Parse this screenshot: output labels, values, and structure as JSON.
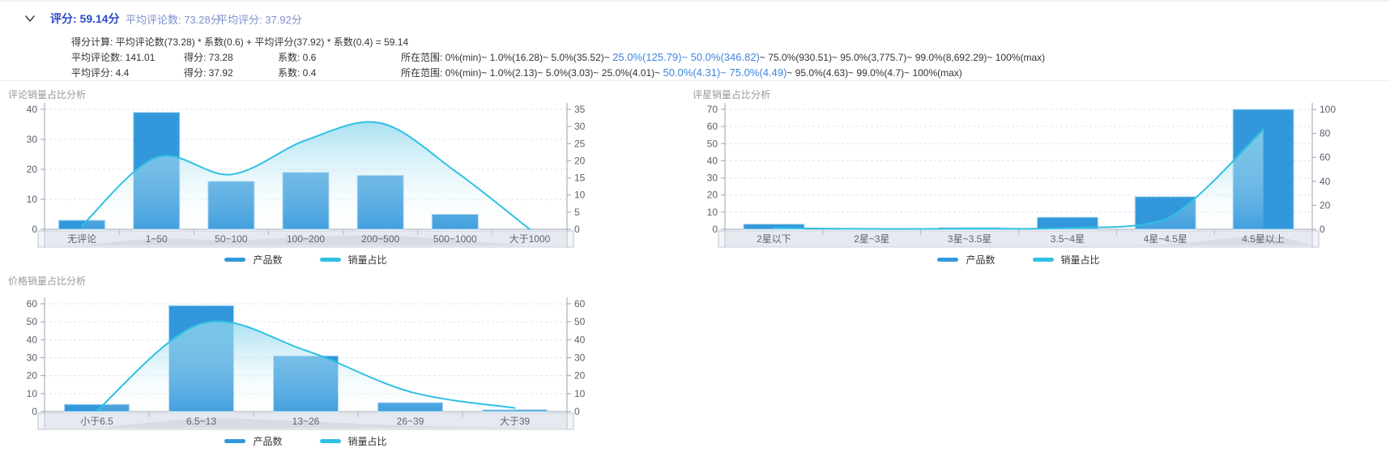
{
  "header": {
    "score_label": "评分: 59.14分",
    "avg_reviews_label": "平均评论数: 73.28分",
    "avg_rating_label": "平均评分: 37.92分",
    "formula": "得分计算: 平均评论数(73.28) * 系数(0.6) + 平均评分(37.92) * 系数(0.4) = 59.14",
    "rows": [
      {
        "metric": "平均评论数: 141.01",
        "score": "得分: 73.28",
        "coeff": "系数: 0.6",
        "range_prefix": "所在范围: 0%(min)~ 1.0%(16.28)~ 5.0%(35.52)~ ",
        "range_highlight": "25.0%(125.79)~ 50.0%(346.82)",
        "range_suffix": "~ 75.0%(930.51)~ 95.0%(3,775.7)~ 99.0%(8,692.29)~ 100%(max)"
      },
      {
        "metric": "平均评分: 4.4",
        "score": "得分: 37.92",
        "coeff": "系数: 0.4",
        "range_prefix": "所在范围: 0%(min)~ 1.0%(2.13)~ 5.0%(3.03)~ 25.0%(4.01)~ ",
        "range_highlight": "50.0%(4.31)~ 75.0%(4.49)",
        "range_suffix": "~ 95.0%(4.63)~ 99.0%(4.7)~ 100%(max)"
      }
    ]
  },
  "legend": {
    "bar_label": "产品数",
    "line_label": "销量占比"
  },
  "colors": {
    "bar": "#3398db",
    "bar_border": "#aed6f0",
    "line": "#2fc0e2",
    "area_top": "rgba(140,214,236,0.75)",
    "area_bottom": "rgba(255,255,255,0.08)",
    "score_primary": "#2b4ac8",
    "score_secondary": "#7e90cc",
    "range_highlight": "#3d85dd",
    "chart_title": "#999999",
    "axis_line": "#9aa2b1",
    "axis_label": "#5b6166",
    "grid_line": "#dde3ee",
    "slider_bg": "#e6e9f0",
    "slider_border": "#ccd2dd",
    "slider_label": "#60656c",
    "slider_wave": "#d3d8e2",
    "slider_handle": "#f2f4f8",
    "slider_handle_border": "#bcc3cf"
  },
  "chart_data": [
    {
      "type": "bar",
      "subtype": "bar + smooth line with area fill, dual y-axis, datazoom slider",
      "title": "评论销量占比分析",
      "categories": [
        "无评论",
        "1~50",
        "50~100",
        "100~200",
        "200~500",
        "500~1000",
        "大于1000"
      ],
      "series": [
        {
          "name": "产品数",
          "type": "bar",
          "y_axis": "left",
          "values": [
            3,
            39,
            16,
            19,
            18,
            5,
            0
          ]
        },
        {
          "name": "销量占比",
          "type": "line",
          "y_axis": "right",
          "values": [
            1,
            21,
            16,
            26,
            31,
            17,
            0
          ]
        }
      ],
      "left_axis": {
        "min": 0,
        "max": 40,
        "ticks": [
          0,
          10,
          20,
          30,
          40
        ]
      },
      "right_axis": {
        "min": 0,
        "max": 35,
        "ticks": [
          0,
          5,
          10,
          15,
          20,
          25,
          30,
          35
        ]
      },
      "grid": "dashed horizontal",
      "legend_position": "bottom",
      "has_datazoom_slider": true
    },
    {
      "type": "bar",
      "subtype": "bar + smooth line with area fill, dual y-axis, datazoom slider",
      "title": "评星销量占比分析",
      "categories": [
        "2星以下",
        "2星~3星",
        "3星~3.5星",
        "3.5~4星",
        "4星~4.5星",
        "4.5星以上"
      ],
      "series": [
        {
          "name": "产品数",
          "type": "bar",
          "y_axis": "left",
          "values": [
            3,
            0.5,
            1,
            7,
            19,
            70
          ]
        },
        {
          "name": "销量占比",
          "type": "line",
          "y_axis": "right",
          "values": [
            1,
            0.3,
            0.5,
            1,
            8,
            83
          ]
        }
      ],
      "left_axis": {
        "min": 0,
        "max": 70,
        "ticks": [
          0,
          10,
          20,
          30,
          40,
          50,
          60,
          70
        ]
      },
      "right_axis": {
        "min": 0,
        "max": 100,
        "ticks": [
          0,
          20,
          40,
          60,
          80,
          100
        ]
      },
      "grid": "dashed horizontal",
      "legend_position": "bottom",
      "has_datazoom_slider": true
    },
    {
      "type": "bar",
      "subtype": "bar + smooth line with area fill, dual y-axis, datazoom slider",
      "title": "价格销量占比分析",
      "categories": [
        "小于6.5",
        "6.5~13",
        "13~26",
        "26~39",
        "大于39"
      ],
      "series": [
        {
          "name": "产品数",
          "type": "bar",
          "y_axis": "left",
          "values": [
            4,
            59,
            31,
            5,
            1
          ]
        },
        {
          "name": "销量占比",
          "type": "line",
          "y_axis": "right",
          "values": [
            0.5,
            49,
            34,
            11,
            2
          ]
        }
      ],
      "left_axis": {
        "min": 0,
        "max": 60,
        "ticks": [
          0,
          10,
          20,
          30,
          40,
          50,
          60
        ]
      },
      "right_axis": {
        "min": 0,
        "max": 60,
        "ticks": [
          0,
          10,
          20,
          30,
          40,
          50,
          60
        ]
      },
      "grid": "dashed horizontal",
      "legend_position": "bottom",
      "has_datazoom_slider": true
    }
  ]
}
